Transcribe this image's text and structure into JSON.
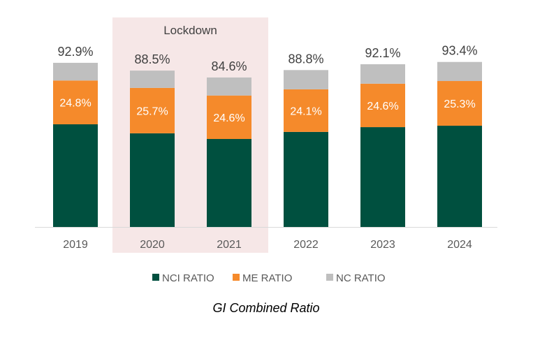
{
  "chart_data": {
    "type": "bar",
    "stacked": true,
    "title": "GI Combined Ratio",
    "categories": [
      "2019",
      "2020",
      "2021",
      "2022",
      "2023",
      "2024"
    ],
    "series": [
      {
        "name": "NCI RATIO",
        "color": "#00503F",
        "values": [
          58.1,
          53.0,
          49.8,
          53.8,
          56.5,
          57.3
        ]
      },
      {
        "name": "ME RATIO",
        "color": "#F58A2B",
        "values": [
          24.8,
          25.7,
          24.6,
          24.1,
          24.6,
          25.3
        ],
        "labels": [
          "24.8%",
          "25.7%",
          "24.6%",
          "24.1%",
          "24.6%",
          "25.3%"
        ]
      },
      {
        "name": "NC RATIO",
        "color": "#BFBFBF",
        "values": [
          10.0,
          9.8,
          10.2,
          10.9,
          11.0,
          10.8
        ]
      }
    ],
    "totals": [
      "92.9%",
      "88.5%",
      "84.6%",
      "88.8%",
      "92.1%",
      "93.4%"
    ],
    "annotation": {
      "text": "Lockdown",
      "categories": [
        "2020",
        "2021"
      ],
      "color": "#F6E7E7"
    },
    "xlabel": "",
    "ylabel": "",
    "ylim": [
      0,
      100
    ],
    "grid": false,
    "legend": "bottom"
  }
}
